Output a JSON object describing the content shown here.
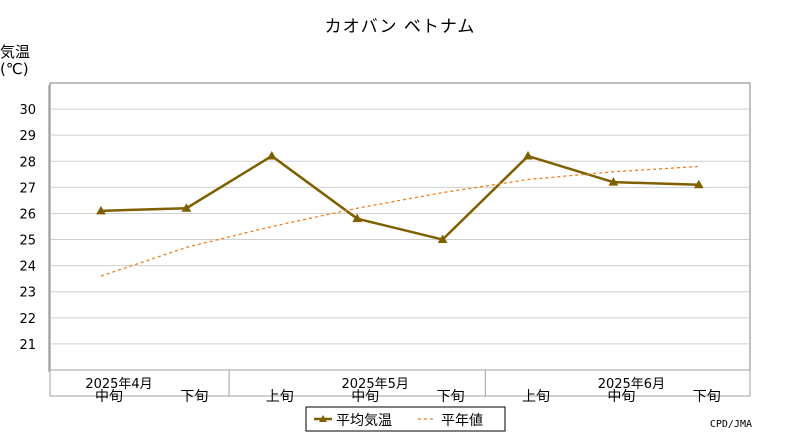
{
  "chart_data": {
    "type": "line",
    "title": "カオバン ベトナム",
    "ylabel": "気温",
    "yunit": "(℃)",
    "ylim": [
      20,
      31
    ],
    "yticks": [
      21,
      22,
      23,
      24,
      25,
      26,
      27,
      28,
      29,
      30
    ],
    "grid": true,
    "x_period_labels": [
      "中旬",
      "下旬",
      "上旬",
      "中旬",
      "下旬",
      "上旬",
      "中旬",
      "下旬"
    ],
    "x_month_labels": [
      {
        "label": "2025年4月",
        "index": 0
      },
      {
        "label": "2025年5月",
        "index": 3
      },
      {
        "label": "2025年6月",
        "index": 6
      }
    ],
    "series": [
      {
        "name": "平均気温",
        "color": "#7f6000",
        "style": "solid",
        "marker": "triangle",
        "values": [
          26.1,
          26.2,
          28.2,
          25.8,
          25.0,
          28.2,
          27.2,
          27.1
        ]
      },
      {
        "name": "平年値",
        "color": "#f07f1e",
        "style": "dashed",
        "marker": "none",
        "values": [
          23.6,
          24.7,
          25.5,
          26.2,
          26.8,
          27.3,
          27.6,
          27.8
        ]
      }
    ],
    "legend_position": "bottom-center",
    "credit": "CPD/JMA"
  }
}
